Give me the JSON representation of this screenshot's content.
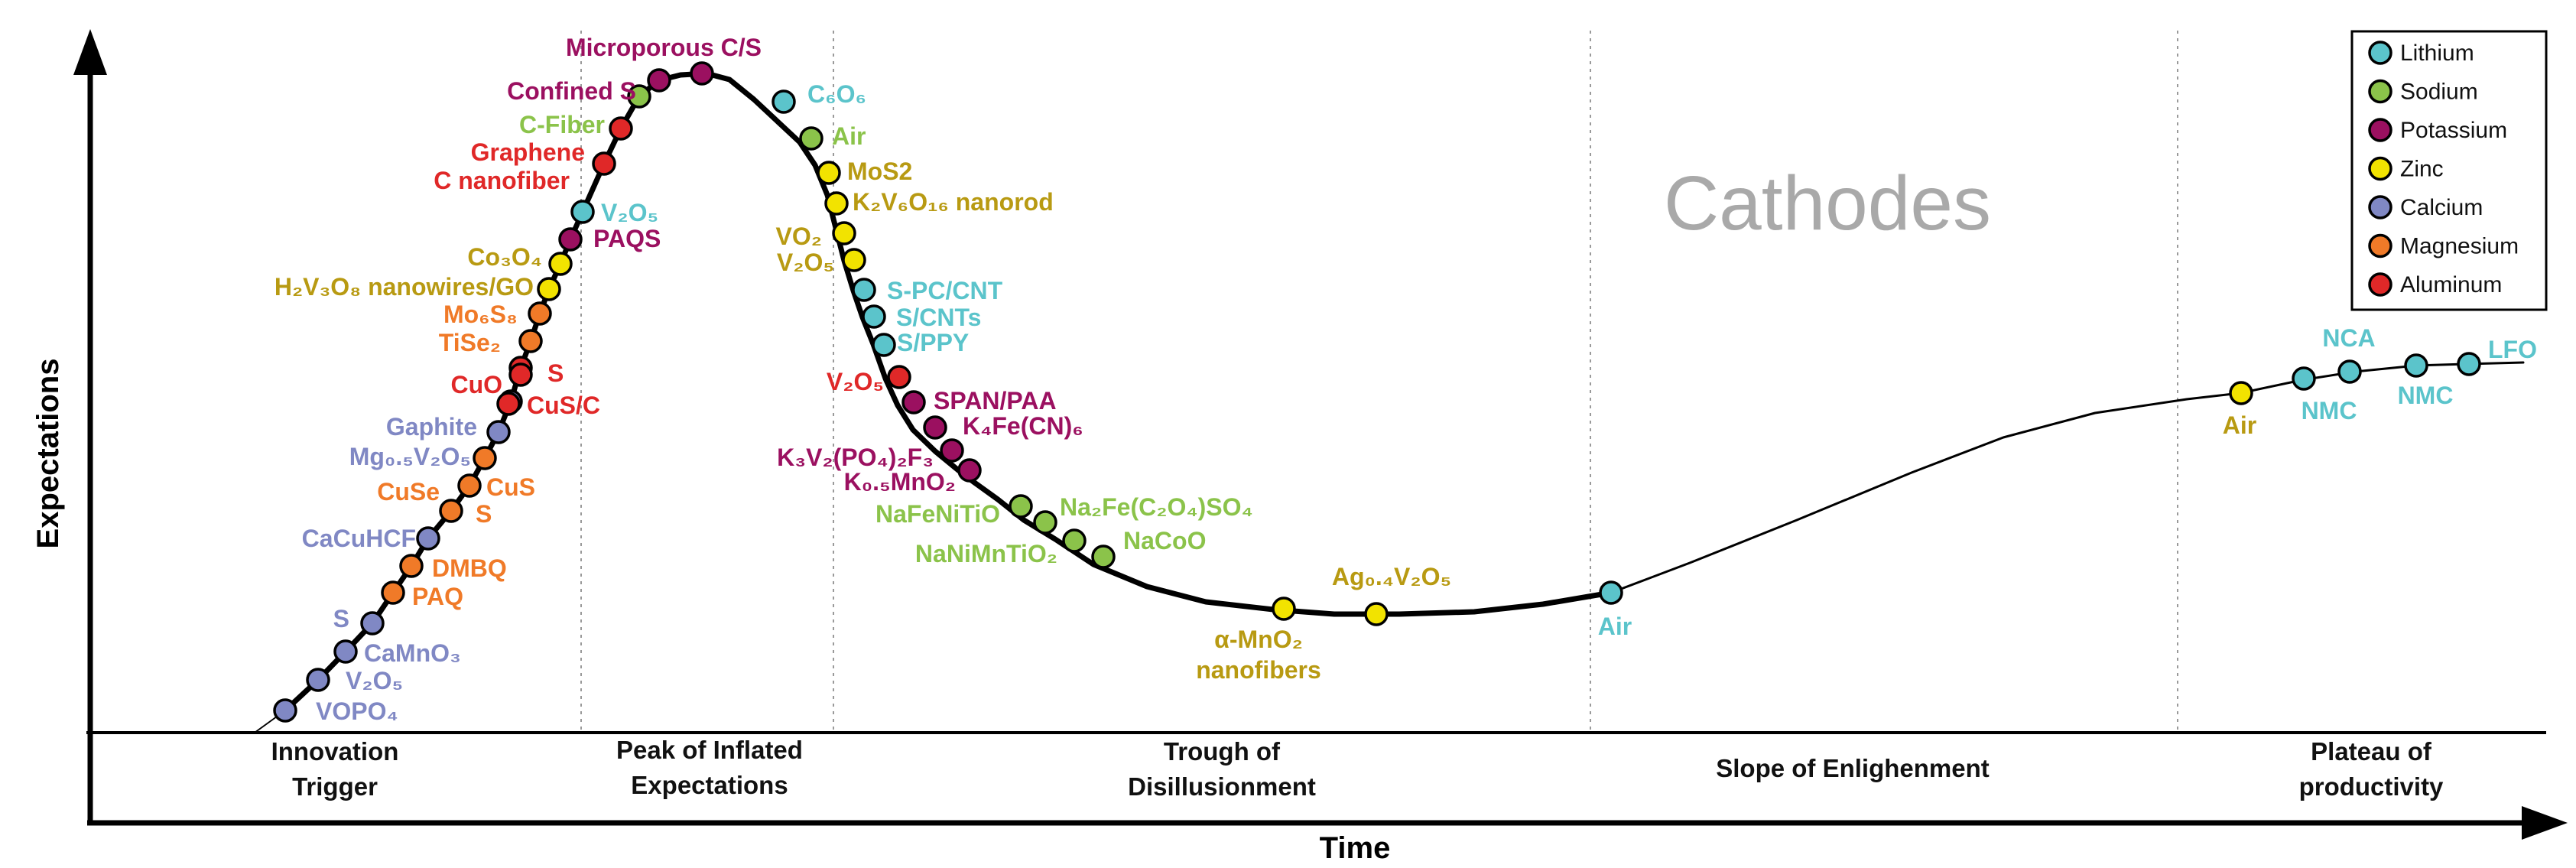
{
  "watermark": "Cathodes",
  "axes": {
    "x_title": "Time",
    "y_title": "Expectations"
  },
  "phases": [
    {
      "lines": [
        "Innovation",
        "Trigger"
      ]
    },
    {
      "lines": [
        "Peak of Inflated",
        "Expectations"
      ]
    },
    {
      "lines": [
        "Trough of",
        "Disillusionment"
      ]
    },
    {
      "lines": [
        "Slope of Enlighenment"
      ]
    },
    {
      "lines": [
        "Plateau of",
        "productivity"
      ]
    }
  ],
  "legend": [
    {
      "key": "lithium",
      "label": "Lithium",
      "color": "#5bc4cb"
    },
    {
      "key": "sodium",
      "label": "Sodium",
      "color": "#8bc34a"
    },
    {
      "key": "potassium",
      "label": "Potassium",
      "color": "#9b1060"
    },
    {
      "key": "zinc",
      "label": "Zinc",
      "color": "#f2e300"
    },
    {
      "key": "calcium",
      "label": "Calcium",
      "color": "#8088c4"
    },
    {
      "key": "magnesium",
      "label": "Magnesium",
      "color": "#f07a28"
    },
    {
      "key": "aluminum",
      "label": "Aluminum",
      "color": "#e02828"
    }
  ],
  "label_colors": {
    "lithium": "#5bc4cb",
    "sodium": "#8bc34a",
    "potassium": "#9b1060",
    "zinc": "#b89a12",
    "calcium": "#8088c4",
    "magnesium": "#f07a28",
    "aluminum": "#e02828"
  },
  "points": [
    {
      "label": "VOPO₄",
      "ion": "calcium"
    },
    {
      "label": "V₂O₅",
      "ion": "calcium"
    },
    {
      "label": "CaMnO₃",
      "ion": "calcium"
    },
    {
      "label": "S",
      "ion": "calcium"
    },
    {
      "label": "PAQ",
      "ion": "magnesium"
    },
    {
      "label": "DMBQ",
      "ion": "magnesium"
    },
    {
      "label": "CaCuHCF",
      "ion": "calcium"
    },
    {
      "label": "S",
      "ion": "magnesium"
    },
    {
      "label": "CuS",
      "ion": "magnesium"
    },
    {
      "label": "CuSe",
      "ion": "magnesium"
    },
    {
      "label": "Mg₀.₅V₂O₅",
      "ion": "calcium"
    },
    {
      "label": "Gaphite",
      "ion": "calcium"
    },
    {
      "label": "CuS/C",
      "ion": "aluminum"
    },
    {
      "label": "S",
      "ion": "aluminum"
    },
    {
      "label": "CuO",
      "ion": "aluminum"
    },
    {
      "label": "TiSe₂",
      "ion": "magnesium"
    },
    {
      "label": "Mo₆S₈",
      "ion": "magnesium"
    },
    {
      "label": "H₂V₃O₈ nanowires/GO",
      "ion": "zinc"
    },
    {
      "label": "Co₃O₄",
      "ion": "zinc"
    },
    {
      "label": "PAQS",
      "ion": "potassium"
    },
    {
      "label": "V₂O₅",
      "ion": "lithium"
    },
    {
      "label": "C nanofiber",
      "ion": "aluminum"
    },
    {
      "label": "Graphene",
      "ion": "aluminum"
    },
    {
      "label": "C-Fiber",
      "ion": "sodium"
    },
    {
      "label": "Confined S",
      "ion": "potassium"
    },
    {
      "label": "Microporous C/S",
      "ion": "potassium"
    },
    {
      "label": "C₆O₆",
      "ion": "lithium"
    },
    {
      "label": "Air",
      "ion": "sodium"
    },
    {
      "label": "MoS2",
      "ion": "zinc"
    },
    {
      "label": "K₂V₆O₁₆ nanorod",
      "ion": "zinc"
    },
    {
      "label": "VO₂",
      "ion": "zinc"
    },
    {
      "label": "V₂O₅",
      "ion": "zinc"
    },
    {
      "label": "S-PC/CNT",
      "ion": "lithium"
    },
    {
      "label": "S/CNTs",
      "ion": "lithium"
    },
    {
      "label": "S/PPY",
      "ion": "lithium"
    },
    {
      "label": "V₂O₅",
      "ion": "aluminum"
    },
    {
      "label": "SPAN/PAA",
      "ion": "potassium"
    },
    {
      "label": "K₄Fe(CN)₆",
      "ion": "potassium"
    },
    {
      "label": "K₃V₂(PO₄)₂F₃",
      "ion": "potassium"
    },
    {
      "label": "K₀.₅MnO₂",
      "ion": "potassium"
    },
    {
      "label": "NaFeNiTiO",
      "ion": "sodium"
    },
    {
      "label": "Na₂Fe(C₂O₄)SO₄",
      "ion": "sodium"
    },
    {
      "label": "NaNiMnTiO₂",
      "ion": "sodium"
    },
    {
      "label": "NaCoO",
      "ion": "sodium"
    },
    {
      "label": [
        "α-MnO₂",
        "nanofibers"
      ],
      "ion": "zinc"
    },
    {
      "label": "Ag₀.₄V₂O₅",
      "ion": "zinc"
    },
    {
      "label": "Air",
      "ion": "lithium"
    },
    {
      "label": "Air",
      "ion": "zinc"
    },
    {
      "label": "NMC",
      "ion": "lithium"
    },
    {
      "label": "NCA",
      "ion": "lithium"
    },
    {
      "label": "NMC",
      "ion": "lithium"
    },
    {
      "label": "LFO",
      "ion": "lithium"
    }
  ]
}
